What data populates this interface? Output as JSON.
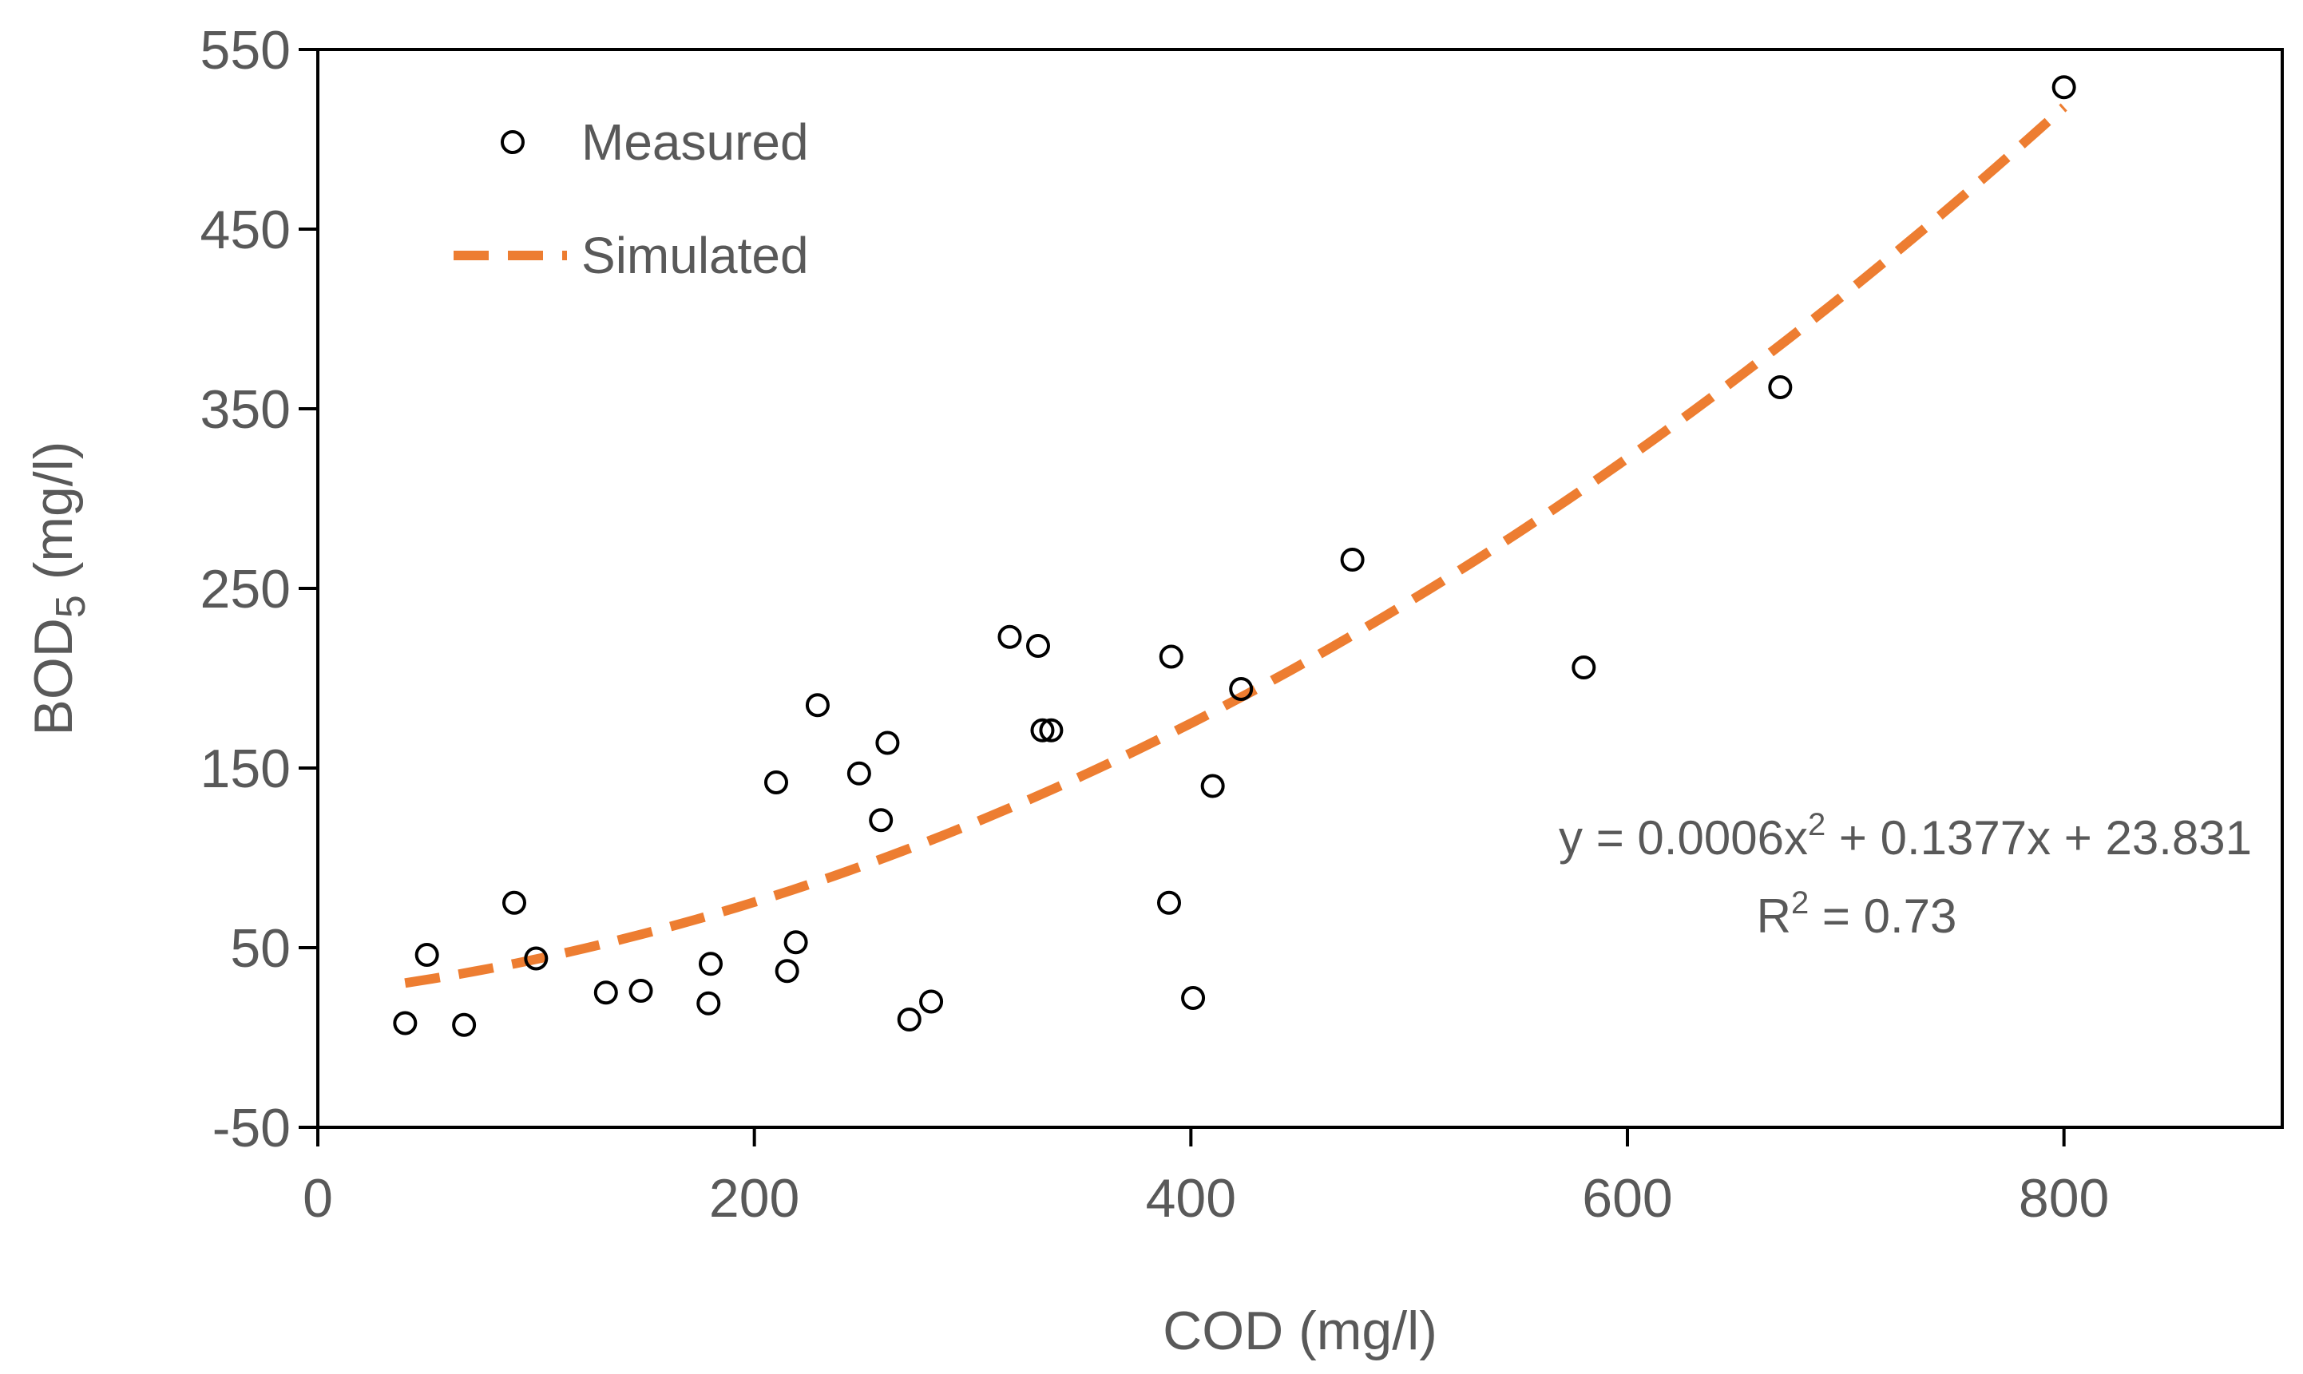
{
  "chart_data": {
    "type": "scatter",
    "title": "",
    "xlabel": "COD (mg/l)",
    "ylabel": {
      "main": "BOD",
      "subscript": "5",
      "suffix": " (mg/l)"
    },
    "xlim": [
      0,
      900
    ],
    "ylim": [
      -50,
      550
    ],
    "xticks": [
      0,
      200,
      400,
      600,
      800
    ],
    "yticks": [
      -50,
      50,
      150,
      250,
      350,
      450,
      550
    ],
    "grid": false,
    "legend_position": "top-left",
    "series": [
      {
        "name": "Measured",
        "kind": "scatter",
        "marker": "open-circle",
        "color": "#000000",
        "points": [
          [
            40,
            8
          ],
          [
            50,
            46
          ],
          [
            67,
            7
          ],
          [
            90,
            75
          ],
          [
            100,
            44
          ],
          [
            132,
            25
          ],
          [
            148,
            26
          ],
          [
            179,
            19
          ],
          [
            180,
            41
          ],
          [
            210,
            142
          ],
          [
            215,
            37
          ],
          [
            219,
            53
          ],
          [
            229,
            185
          ],
          [
            248,
            147
          ],
          [
            258,
            121
          ],
          [
            261,
            164
          ],
          [
            271,
            10
          ],
          [
            281,
            20
          ],
          [
            317,
            223
          ],
          [
            330,
            218
          ],
          [
            332,
            171
          ],
          [
            336,
            171
          ],
          [
            390,
            75
          ],
          [
            391,
            212
          ],
          [
            401,
            22
          ],
          [
            410,
            140
          ],
          [
            423,
            194
          ],
          [
            474,
            266
          ],
          [
            580,
            206
          ],
          [
            670,
            362
          ],
          [
            800,
            529
          ]
        ]
      },
      {
        "name": "Simulated",
        "kind": "line",
        "style": "dashed",
        "color": "#ED7D31",
        "equation": {
          "a": 0.0006,
          "b": 0.1377,
          "c": 23.831
        },
        "x_range": [
          40,
          800
        ]
      }
    ],
    "annotations": {
      "equation_line": {
        "prefix": "y = 0.0006x",
        "sup": "2",
        "suffix": " + 0.1377x + 23.831"
      },
      "r2_line": {
        "prefix": "R",
        "sup": "2",
        "suffix": " = 0.73"
      }
    }
  }
}
